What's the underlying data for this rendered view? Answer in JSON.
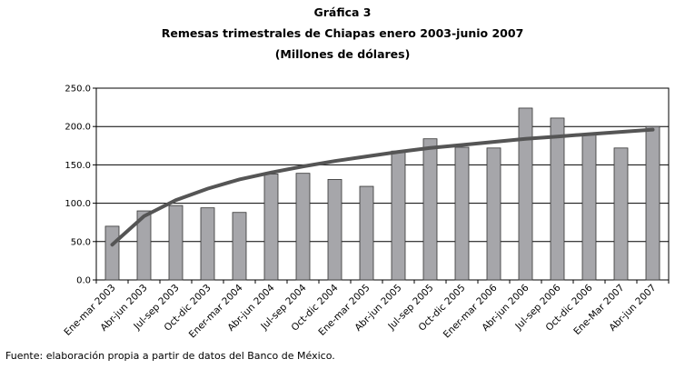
{
  "header": {
    "label": "Gráfica 3",
    "title": "Remesas trimestrales de Chiapas enero 2003-junio 2007",
    "subtitle": "(Millones de dólares)"
  },
  "footer": {
    "source": "Fuente: elaboración propia a partir de datos del Banco de México."
  },
  "chart_data": {
    "type": "bar",
    "categories": [
      "Ene-mar 2003",
      "Abr-jun 2003",
      "Jul-sep 2003",
      "Oct-dic 2003",
      "Ener-mar 2004",
      "Abr-jun 2004",
      "Jul-sep 2004",
      "Oct-dic 2004",
      "Ene-mar 2005",
      "Abr-jun 2005",
      "Jul-sep 2005",
      "Oct-dic 2005",
      "Ener-mar 2006",
      "Abr-jun 2006",
      "Jul-sep 2006",
      "Oct-dic 2006",
      "Ene-Mar 2007",
      "Abr-jun 2007"
    ],
    "series": [
      {
        "values": [
          70,
          90,
          97,
          94,
          88,
          138,
          139,
          131,
          122,
          168,
          184,
          173,
          172,
          224,
          211,
          190,
          172,
          200
        ]
      }
    ],
    "trendline": {
      "type": "logarithmic",
      "values": [
        46,
        83,
        104,
        119,
        131,
        140,
        148,
        155,
        161,
        167,
        172,
        176,
        180,
        184,
        187,
        190,
        193,
        196
      ]
    },
    "ylim": [
      0,
      250
    ],
    "yticks": [
      "0.0",
      "50.0",
      "100.0",
      "150.0",
      "200.0",
      "250.0"
    ],
    "grid": true,
    "legend": "none",
    "colors": {
      "bar": "#a6a6aa",
      "bar_stroke": "#333333",
      "trend": "#555555",
      "grid": "#000000"
    }
  }
}
